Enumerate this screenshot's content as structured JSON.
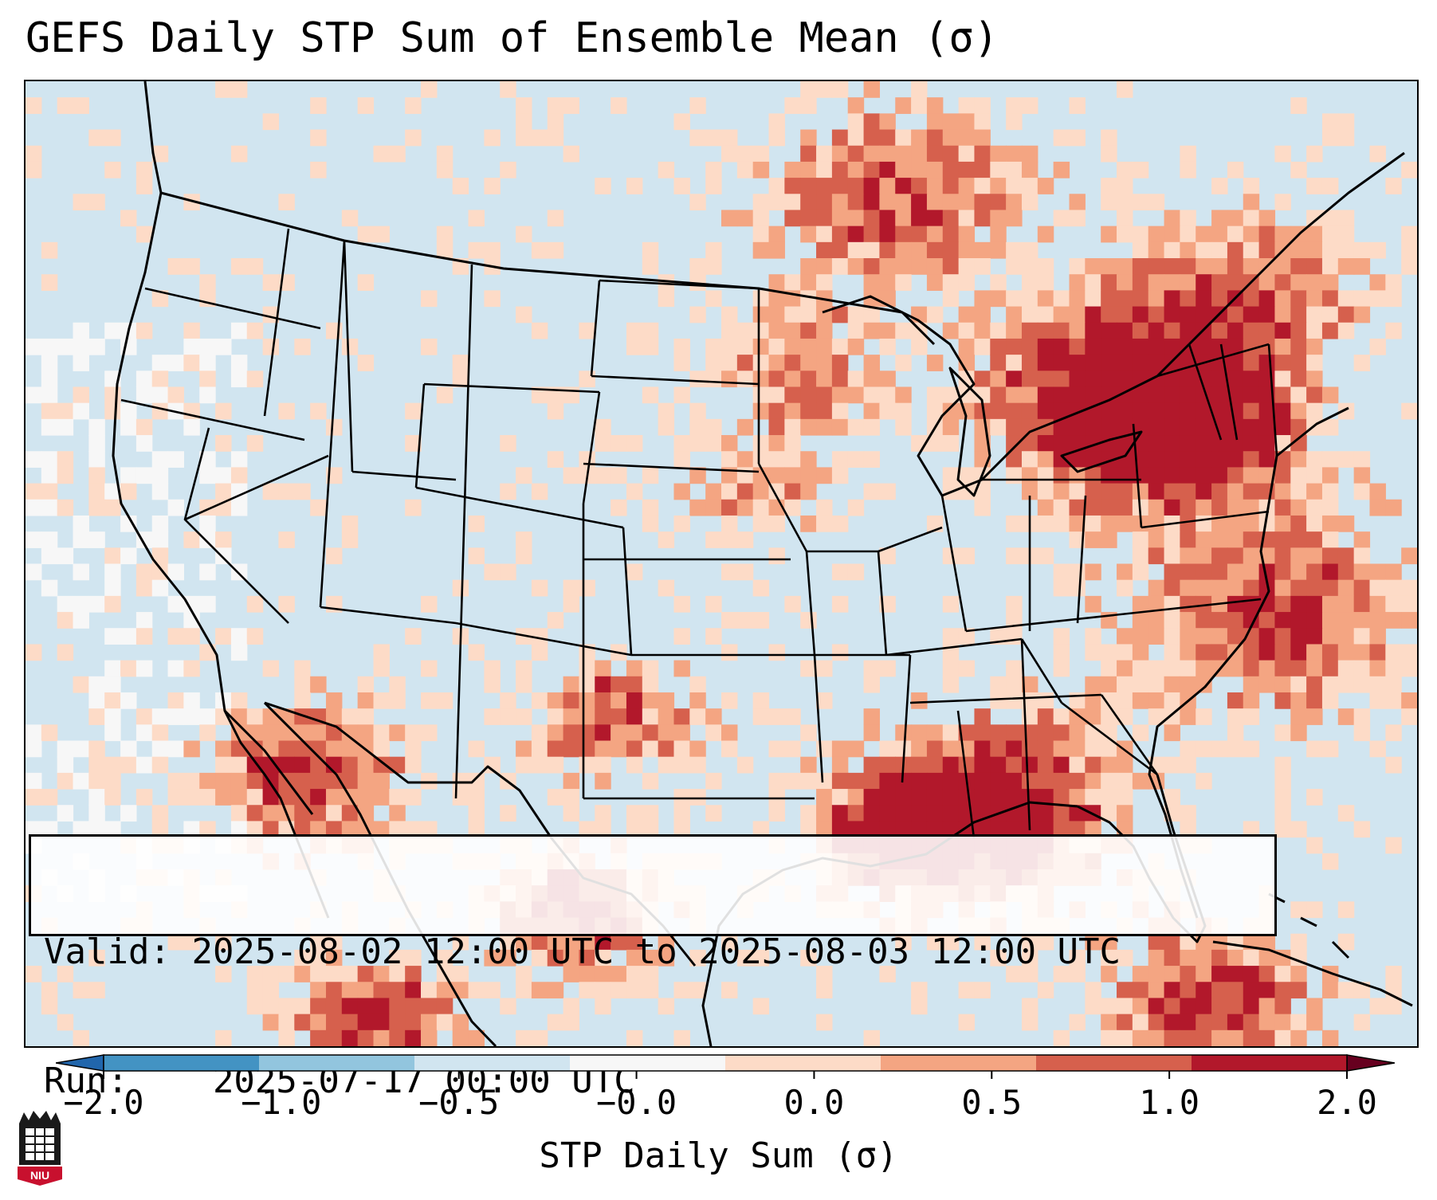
{
  "title": "GEFS Daily STP Sum of Ensemble Mean (σ)",
  "info": {
    "valid_label": "Valid:",
    "valid_value": "2025-08-02 12:00 UTC to 2025-08-03 12:00 UTC",
    "run_label": "Run:",
    "run_value": "2025-07-17 00:00 UTC"
  },
  "colorbar": {
    "label": "STP Daily Sum (σ)",
    "ticks": [
      "−2.0",
      "−1.0",
      "−0.5",
      "−0.0",
      "0.0",
      "0.5",
      "1.0",
      "2.0"
    ],
    "colors": [
      "#4393c3",
      "#92c5de",
      "#d1e5f0",
      "#f7f7f7",
      "#fddbc7",
      "#f4a582",
      "#d6604d",
      "#b2182b"
    ]
  },
  "logo": {
    "text": "NIU"
  },
  "colors": {
    "ocean_background": "#d1e5f0",
    "neutral": "#f7f7f7",
    "weak_positive": "#fddbc7",
    "moderate_positive": "#f4a582",
    "strong_positive": "#d6604d",
    "extreme_positive": "#b2182b",
    "weak_negative": "#92c5de",
    "brand_red": "#c8102e"
  },
  "field": {
    "description_levels": [
      "neutral",
      "weak_positive",
      "moderate_positive",
      "strong_positive",
      "extreme_positive",
      "weak_negative"
    ],
    "grid_cols": 88,
    "grid_rows": 60,
    "seed": 20250802
  }
}
